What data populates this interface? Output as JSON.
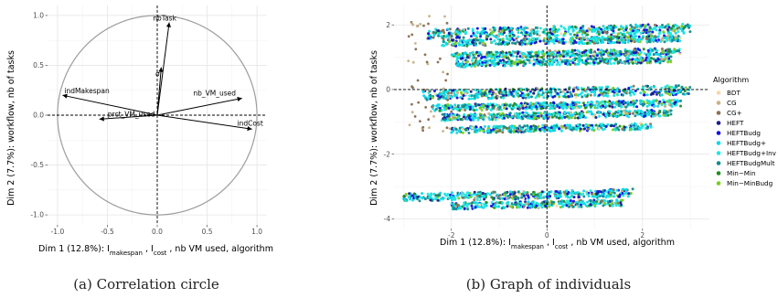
{
  "chart_data": [
    {
      "type": "scatter",
      "variant": "correlation-circle",
      "caption": "(a) Correlation circle",
      "xlabel_parts": [
        "Dim 1 (12.8%): I",
        "makespan",
        " , I",
        "cost",
        " , nb VM used, algorithm"
      ],
      "ylabel": "Dim 2 (7.7%): workflow, nb of tasks",
      "xlim": [
        -1.1,
        1.1
      ],
      "ylim": [
        -1.1,
        1.1
      ],
      "x_ticks": [
        -1.0,
        -0.5,
        0.0,
        0.5,
        1.0
      ],
      "x_tick_labels": [
        "-1.0",
        "-0.5",
        "0.0",
        "0.5",
        "1.0"
      ],
      "y_ticks": [
        -1.0,
        -0.5,
        0.0,
        0.5,
        1.0
      ],
      "y_tick_labels": [
        "-1.0",
        "-0.5",
        "0.0",
        "0.5",
        "1.0"
      ],
      "grid": true,
      "vectors": [
        {
          "name": "nbTask",
          "x": 0.12,
          "y": 0.93
        },
        {
          "name": "σ",
          "x": 0.04,
          "y": 0.48
        },
        {
          "name": "indMakespan",
          "x": -0.95,
          "y": 0.2
        },
        {
          "name": "nb_VM_used",
          "x": 0.85,
          "y": 0.17
        },
        {
          "name": "prct_VM_used",
          "x": -0.58,
          "y": -0.04
        },
        {
          "name": "indCost",
          "x": 0.95,
          "y": -0.14
        }
      ]
    },
    {
      "type": "scatter",
      "variant": "individuals",
      "caption": "(b) Graph of individuals",
      "xlabel_parts": [
        "Dim 1 (12.8%): I",
        "makespan",
        " , I",
        "cost",
        " , nb VM used, algorithm"
      ],
      "ylabel": "Dim 2 (7.7%): workflow, nb of tasks",
      "xlim": [
        -3.2,
        3.4
      ],
      "ylim": [
        -4.3,
        2.6
      ],
      "x_ticks": [
        -2,
        0,
        2
      ],
      "x_tick_labels": [
        "-2",
        "0",
        "2"
      ],
      "y_ticks": [
        -4,
        -2,
        0,
        2
      ],
      "y_tick_labels": [
        "-4",
        "-2",
        "0",
        "2"
      ],
      "grid": true,
      "legend_title": "Algorithm",
      "legend_position": "right",
      "series": [
        {
          "name": "BDT",
          "color": "#f5d9a8"
        },
        {
          "name": "CG",
          "color": "#c9b38c"
        },
        {
          "name": "CG+",
          "color": "#8c7356"
        },
        {
          "name": "HEFT",
          "color": "#1c1c8a"
        },
        {
          "name": "HEFTBudg",
          "color": "#1010e0"
        },
        {
          "name": "HEFTBudg+",
          "color": "#10d8e8"
        },
        {
          "name": "HEFTBudg+Inv",
          "color": "#20e8e0"
        },
        {
          "name": "HEFTBudgMult",
          "color": "#148c8c"
        },
        {
          "name": "Min−Min",
          "color": "#228b22"
        },
        {
          "name": "Min−MinBudg",
          "color": "#7ccd1c"
        }
      ],
      "clusters": [
        {
          "y": 1.8,
          "x_range": [
            -2.5,
            3.0
          ],
          "band": [
            -0.15,
            0.15
          ]
        },
        {
          "y": 1.5,
          "x_range": [
            -2.2,
            2.8
          ],
          "band": [
            -0.1,
            0.1
          ]
        },
        {
          "y": 1.1,
          "x_range": [
            -2.0,
            2.8
          ],
          "band": [
            -0.1,
            0.1
          ]
        },
        {
          "y": 0.85,
          "x_range": [
            -1.9,
            2.6
          ],
          "band": [
            -0.1,
            0.1
          ]
        },
        {
          "y": -0.1,
          "x_range": [
            -2.6,
            3.0
          ],
          "band": [
            -0.15,
            0.15
          ]
        },
        {
          "y": -0.5,
          "x_range": [
            -2.4,
            2.8
          ],
          "band": [
            -0.1,
            0.1
          ]
        },
        {
          "y": -0.8,
          "x_range": [
            -2.2,
            2.6
          ],
          "band": [
            -0.1,
            0.1
          ]
        },
        {
          "y": -1.2,
          "x_range": [
            -2.0,
            2.2
          ],
          "band": [
            -0.1,
            0.1
          ]
        },
        {
          "y": -3.25,
          "x_range": [
            -3.0,
            1.8
          ],
          "band": [
            -0.12,
            0.12
          ]
        },
        {
          "y": -3.55,
          "x_range": [
            -2.0,
            1.6
          ],
          "band": [
            -0.1,
            0.1
          ]
        }
      ]
    }
  ]
}
